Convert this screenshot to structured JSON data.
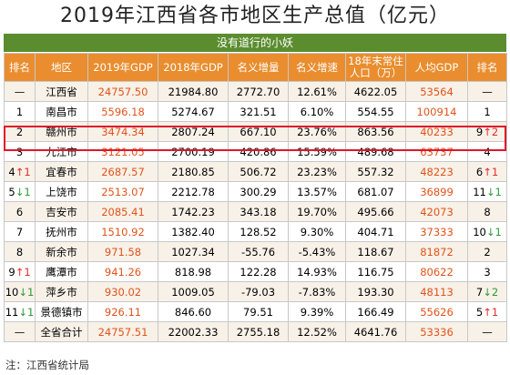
{
  "title": "2019年江西省各市地区生产总值（亿元）",
  "subtitle": "没有道行的小妖",
  "headers": [
    "排名",
    "地区",
    "2019年GDP",
    "2018年GDP",
    "名义增量",
    "名义增速",
    "18年末常住人口（万）",
    "人均GDP",
    "排名"
  ],
  "rows": [
    {
      "rank": "—",
      "rank_arrow": "",
      "rank_dir": "",
      "region": "江西省",
      "gdp2019": "24757.50",
      "gdp2018": "21984.80",
      "increase": "2772.70",
      "growth": "12.61%",
      "population": "4622.05",
      "per_capita": "53564",
      "pc_rank": "—",
      "pc_arrow": "",
      "pc_dir": ""
    },
    {
      "rank": "1",
      "rank_arrow": "",
      "rank_dir": "",
      "region": "南昌市",
      "gdp2019": "5596.18",
      "gdp2018": "5274.67",
      "increase": "321.51",
      "growth": "6.10%",
      "population": "554.55",
      "per_capita": "100914",
      "pc_rank": "1",
      "pc_arrow": "",
      "pc_dir": ""
    },
    {
      "rank": "2",
      "rank_arrow": "",
      "rank_dir": "",
      "region": "赣州市",
      "gdp2019": "3474.34",
      "gdp2018": "2807.24",
      "increase": "667.10",
      "growth": "23.76%",
      "population": "863.56",
      "per_capita": "40233",
      "pc_rank": "9",
      "pc_arrow": "↑2",
      "pc_dir": "up"
    },
    {
      "rank": "3",
      "rank_arrow": "",
      "rank_dir": "",
      "region": "九江市",
      "gdp2019": "3121.05",
      "gdp2018": "2700.19",
      "increase": "420.86",
      "growth": "15.59%",
      "population": "489.68",
      "per_capita": "63737",
      "pc_rank": "4",
      "pc_arrow": "",
      "pc_dir": ""
    },
    {
      "rank": "4",
      "rank_arrow": "↑1",
      "rank_dir": "up",
      "region": "宜春市",
      "gdp2019": "2687.57",
      "gdp2018": "2180.85",
      "increase": "506.72",
      "growth": "23.23%",
      "population": "557.32",
      "per_capita": "48223",
      "pc_rank": "6",
      "pc_arrow": "↑1",
      "pc_dir": "up"
    },
    {
      "rank": "5",
      "rank_arrow": "↓1",
      "rank_dir": "down",
      "region": "上饶市",
      "gdp2019": "2513.07",
      "gdp2018": "2212.78",
      "increase": "300.29",
      "growth": "13.57%",
      "population": "681.07",
      "per_capita": "36899",
      "pc_rank": "11",
      "pc_arrow": "↓1",
      "pc_dir": "down"
    },
    {
      "rank": "6",
      "rank_arrow": "",
      "rank_dir": "",
      "region": "吉安市",
      "gdp2019": "2085.41",
      "gdp2018": "1742.23",
      "increase": "343.18",
      "growth": "19.70%",
      "population": "495.66",
      "per_capita": "42073",
      "pc_rank": "8",
      "pc_arrow": "",
      "pc_dir": ""
    },
    {
      "rank": "7",
      "rank_arrow": "",
      "rank_dir": "",
      "region": "抚州市",
      "gdp2019": "1510.92",
      "gdp2018": "1382.40",
      "increase": "128.52",
      "growth": "9.30%",
      "population": "404.71",
      "per_capita": "37333",
      "pc_rank": "10",
      "pc_arrow": "↓1",
      "pc_dir": "down"
    },
    {
      "rank": "8",
      "rank_arrow": "",
      "rank_dir": "",
      "region": "新余市",
      "gdp2019": "971.58",
      "gdp2018": "1027.34",
      "increase": "-55.76",
      "growth": "-5.43%",
      "population": "118.67",
      "per_capita": "81872",
      "pc_rank": "2",
      "pc_arrow": "",
      "pc_dir": ""
    },
    {
      "rank": "9",
      "rank_arrow": "↑1",
      "rank_dir": "up",
      "region": "鹰潭市",
      "gdp2019": "941.26",
      "gdp2018": "818.98",
      "increase": "122.28",
      "growth": "14.93%",
      "population": "116.75",
      "per_capita": "80622",
      "pc_rank": "3",
      "pc_arrow": "",
      "pc_dir": ""
    },
    {
      "rank": "10",
      "rank_arrow": "↓1",
      "rank_dir": "down",
      "region": "萍乡市",
      "gdp2019": "930.02",
      "gdp2018": "1009.05",
      "increase": "-79.03",
      "growth": "-7.83%",
      "population": "193.30",
      "per_capita": "48113",
      "pc_rank": "7",
      "pc_arrow": "↓2",
      "pc_dir": "down"
    },
    {
      "rank": "11",
      "rank_arrow": "↓1",
      "rank_dir": "down",
      "region": "景德镇市",
      "gdp2019": "926.11",
      "gdp2018": "846.60",
      "increase": "79.51",
      "growth": "9.39%",
      "population": "166.49",
      "per_capita": "55626",
      "pc_rank": "5",
      "pc_arrow": "↑1",
      "pc_dir": "up"
    },
    {
      "rank": "—",
      "rank_arrow": "",
      "rank_dir": "",
      "region": "全省合计",
      "gdp2019": "24757.51",
      "gdp2018": "22002.33",
      "increase": "2755.18",
      "growth": "12.52%",
      "population": "4641.76",
      "per_capita": "53336",
      "pc_rank": "—",
      "pc_arrow": "",
      "pc_dir": ""
    }
  ],
  "note": "注：江西省统计局",
  "colors": {
    "header_bg": "#e98d2e",
    "subtitle_bg": "#5b8d2f",
    "highlight": "#e0162b",
    "accent": "#e2531a",
    "up": "#e22a2a",
    "down": "#2e9a36"
  }
}
